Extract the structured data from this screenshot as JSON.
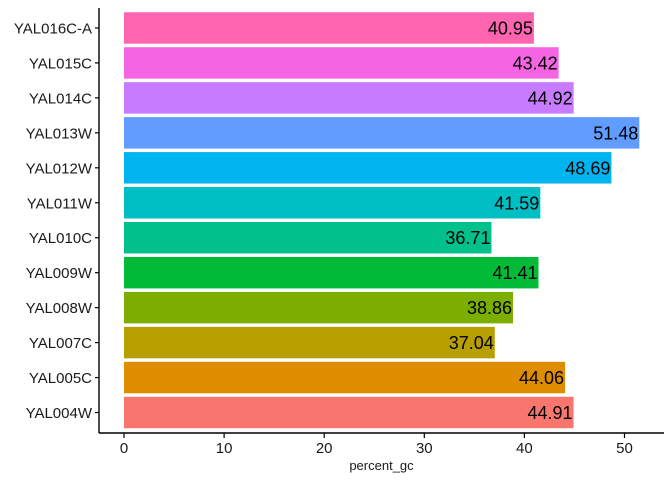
{
  "chart_data": {
    "type": "bar",
    "orientation": "horizontal",
    "categories": [
      "YAL004W",
      "YAL005C",
      "YAL007C",
      "YAL008W",
      "YAL009W",
      "YAL010C",
      "YAL011W",
      "YAL012W",
      "YAL013W",
      "YAL014C",
      "YAL015C",
      "YAL016C-A"
    ],
    "values": [
      44.91,
      44.06,
      37.04,
      38.86,
      41.41,
      36.71,
      41.59,
      48.69,
      51.48,
      44.92,
      43.42,
      40.95
    ],
    "value_labels": [
      "44.91",
      "44.06",
      "37.04",
      "38.86",
      "41.41",
      "36.71",
      "41.59",
      "48.69",
      "51.48",
      "44.92",
      "43.42",
      "40.95"
    ],
    "colors": [
      "#F8766D",
      "#DE8C00",
      "#B79F00",
      "#7CAE00",
      "#00BA38",
      "#00C08B",
      "#00BFC4",
      "#00B4F0",
      "#619CFF",
      "#C77CFF",
      "#F564E3",
      "#FF64B0"
    ],
    "xlabel": "percent_gc",
    "ylabel": "",
    "xlim": [
      0,
      54
    ],
    "xticks": [
      0,
      10,
      20,
      30,
      40,
      50
    ],
    "xtick_labels": [
      "0",
      "10",
      "20",
      "30",
      "40",
      "50"
    ],
    "grid": false,
    "legend": "none"
  }
}
